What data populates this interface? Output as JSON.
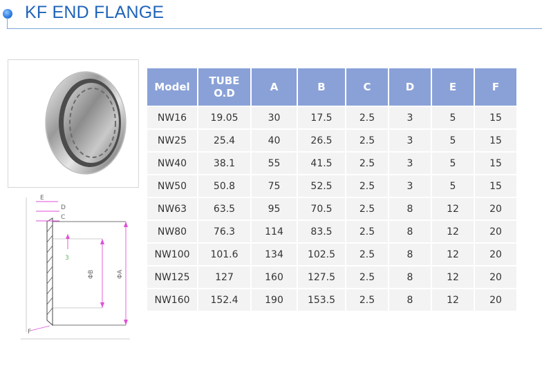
{
  "header": {
    "title": "KF END FLANGE"
  },
  "diagram": {
    "labels": {
      "e": "E",
      "d": "D",
      "c": "C",
      "three": "3",
      "b": "ΦB",
      "a": "ΦA",
      "f": "F"
    }
  },
  "table": {
    "headers": [
      "Model",
      "TUBE O.D",
      "A",
      "B",
      "C",
      "D",
      "E",
      "F"
    ],
    "rows": [
      [
        "NW16",
        "19.05",
        "30",
        "17.5",
        "2.5",
        "3",
        "5",
        "15"
      ],
      [
        "NW25",
        "25.4",
        "40",
        "26.5",
        "2.5",
        "3",
        "5",
        "15"
      ],
      [
        "NW40",
        "38.1",
        "55",
        "41.5",
        "2.5",
        "3",
        "5",
        "15"
      ],
      [
        "NW50",
        "50.8",
        "75",
        "52.5",
        "2.5",
        "3",
        "5",
        "15"
      ],
      [
        "NW63",
        "63.5",
        "95",
        "70.5",
        "2.5",
        "8",
        "12",
        "20"
      ],
      [
        "NW80",
        "76.3",
        "114",
        "83.5",
        "2.5",
        "8",
        "12",
        "20"
      ],
      [
        "NW100",
        "101.6",
        "134",
        "102.5",
        "2.5",
        "8",
        "12",
        "20"
      ],
      [
        "NW125",
        "127",
        "160",
        "127.5",
        "2.5",
        "8",
        "12",
        "20"
      ],
      [
        "NW160",
        "152.4",
        "190",
        "153.5",
        "2.5",
        "8",
        "12",
        "20"
      ]
    ]
  }
}
